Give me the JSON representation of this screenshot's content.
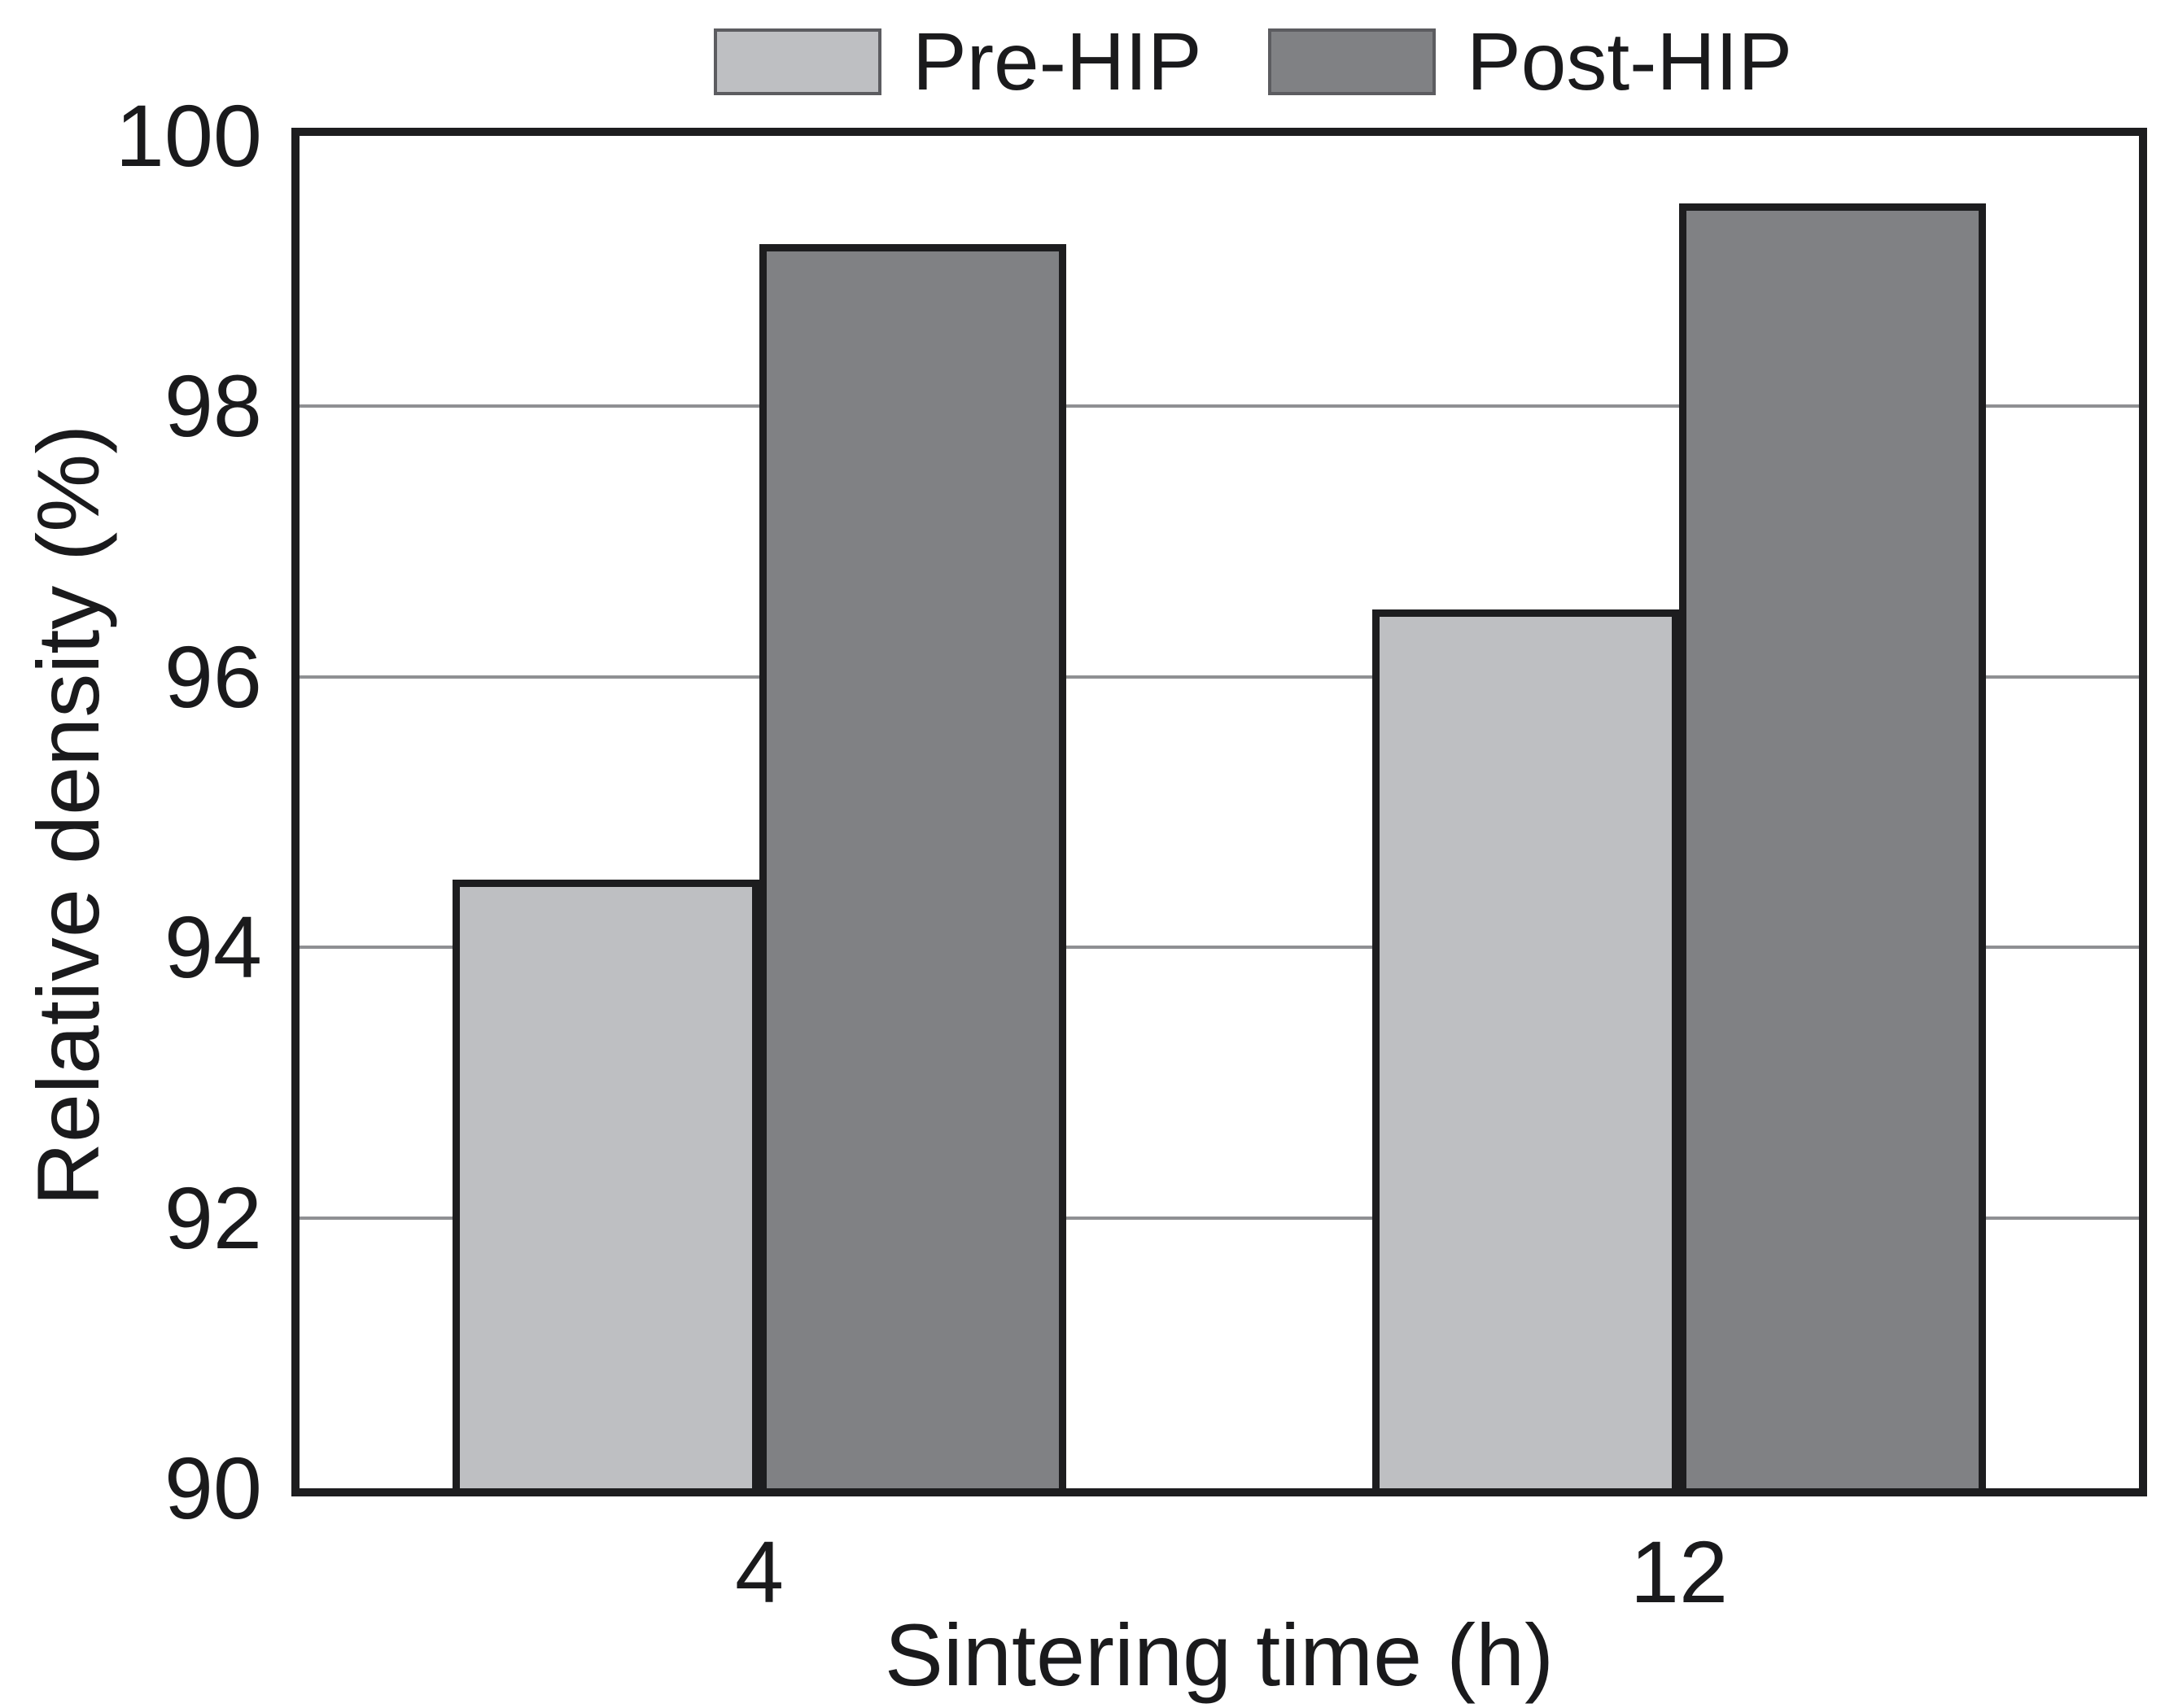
{
  "chart_data": {
    "type": "bar",
    "title": "",
    "categories": [
      "4",
      "12"
    ],
    "series": [
      {
        "name": "Pre-HIP",
        "values": [
          94.5,
          96.5
        ],
        "color": "#bebfc2"
      },
      {
        "name": "Post-HIP",
        "values": [
          99.2,
          99.5
        ],
        "color": "#808184"
      }
    ],
    "xlabel": "Sintering time (h)",
    "ylabel": "Relative density (%)",
    "ylim": [
      90,
      100
    ],
    "yticks": [
      90,
      92,
      94,
      96,
      98,
      100
    ],
    "grid": "horizontal",
    "legend_position": "top-center",
    "colors": {
      "gridline": "#8f9093",
      "bar_border": "#1d1d1f",
      "axis_border": "#1d1d1f",
      "text": "#1a1a1c",
      "background": "#ffffff"
    }
  }
}
